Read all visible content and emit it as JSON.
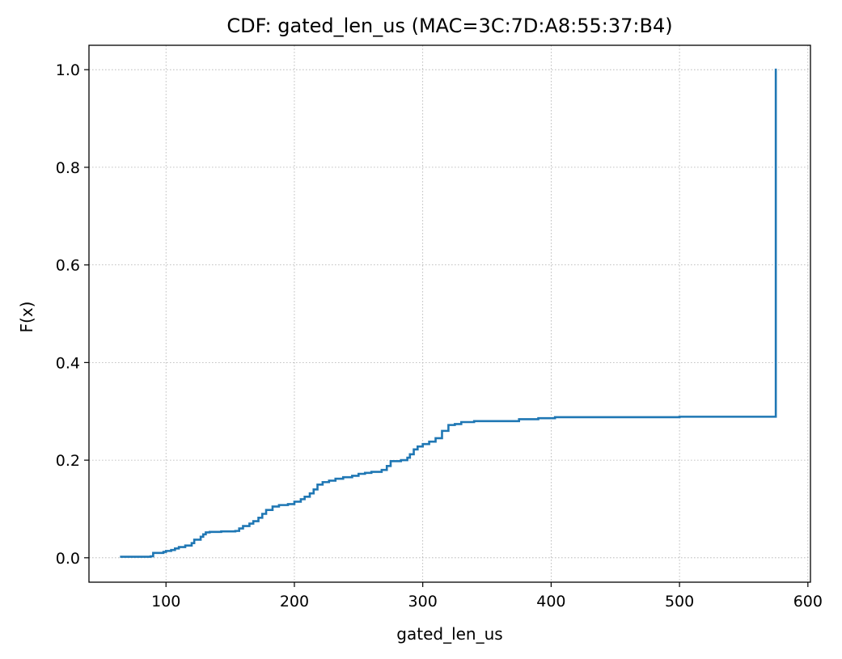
{
  "chart_data": {
    "type": "line",
    "step": true,
    "title": "CDF: gated_len_us (MAC=3C:7D:A8:55:37:B4)",
    "xlabel": "gated_len_us",
    "ylabel": "F(x)",
    "xlim": [
      40,
      602
    ],
    "ylim": [
      -0.05,
      1.05
    ],
    "xticks": [
      100,
      200,
      300,
      400,
      500,
      600
    ],
    "yticks": [
      0.0,
      0.2,
      0.4,
      0.6,
      0.8,
      1.0
    ],
    "ytick_labels": [
      "0.0",
      "0.2",
      "0.4",
      "0.6",
      "0.8",
      "1.0"
    ],
    "grid": true,
    "color": "#1f77b4",
    "series": [
      {
        "x": [
          65,
          88,
          90,
          98,
          100,
          104,
          107,
          110,
          115,
          120,
          122,
          127,
          129,
          131,
          134,
          143,
          154,
          157,
          160,
          165,
          168,
          172,
          175,
          178,
          183,
          188,
          195,
          200,
          205,
          208,
          212,
          215,
          218,
          222,
          227,
          232,
          238,
          245,
          250,
          255,
          260,
          268,
          272,
          275,
          283,
          288,
          290,
          293,
          296,
          300,
          305,
          310,
          315,
          320,
          325,
          330,
          340,
          375,
          390,
          403,
          500,
          575,
          575
        ],
        "y": [
          0.002,
          0.003,
          0.01,
          0.012,
          0.014,
          0.016,
          0.019,
          0.022,
          0.025,
          0.03,
          0.037,
          0.043,
          0.048,
          0.052,
          0.053,
          0.054,
          0.055,
          0.06,
          0.065,
          0.07,
          0.075,
          0.082,
          0.09,
          0.098,
          0.105,
          0.108,
          0.11,
          0.115,
          0.12,
          0.125,
          0.132,
          0.14,
          0.15,
          0.155,
          0.158,
          0.162,
          0.165,
          0.168,
          0.172,
          0.174,
          0.176,
          0.18,
          0.188,
          0.198,
          0.2,
          0.205,
          0.212,
          0.222,
          0.228,
          0.233,
          0.238,
          0.245,
          0.26,
          0.272,
          0.274,
          0.278,
          0.28,
          0.284,
          0.286,
          0.288,
          0.289,
          0.29,
          1.0
        ]
      }
    ]
  }
}
